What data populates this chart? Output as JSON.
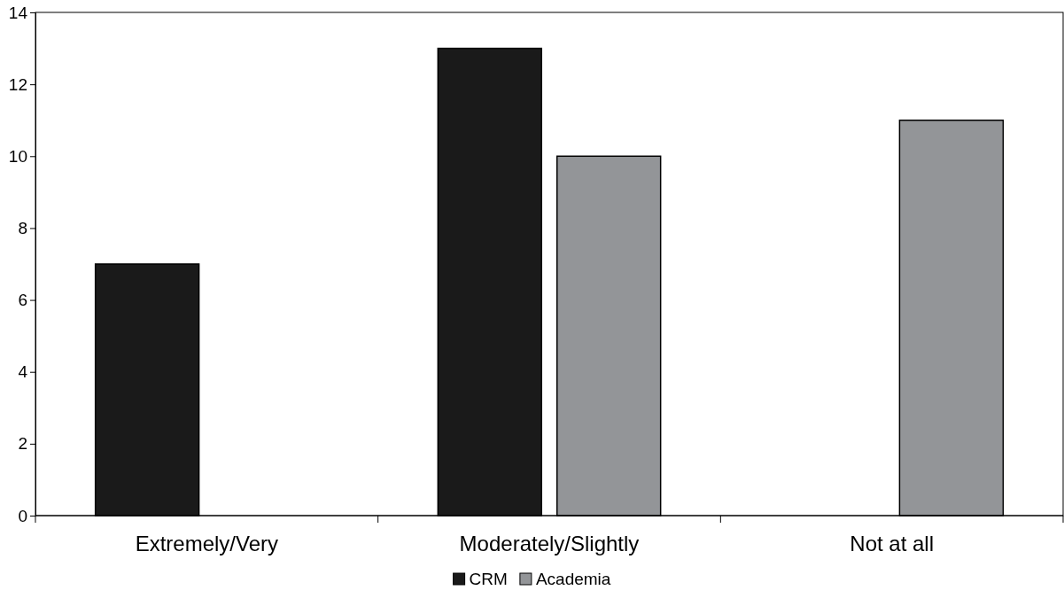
{
  "chart_data": {
    "type": "bar",
    "categories": [
      "Extremely/Very",
      "Moderately/Slightly",
      "Not at all"
    ],
    "series": [
      {
        "name": "CRM",
        "color": "#1a1a1a",
        "values": [
          7,
          13,
          0
        ]
      },
      {
        "name": "Academia",
        "color": "#939598",
        "values": [
          0,
          10,
          11
        ]
      }
    ],
    "ylim": [
      0,
      14
    ],
    "yticks": [
      0,
      2,
      4,
      6,
      8,
      10,
      12,
      14
    ],
    "grid": false,
    "legend": "bottom"
  }
}
